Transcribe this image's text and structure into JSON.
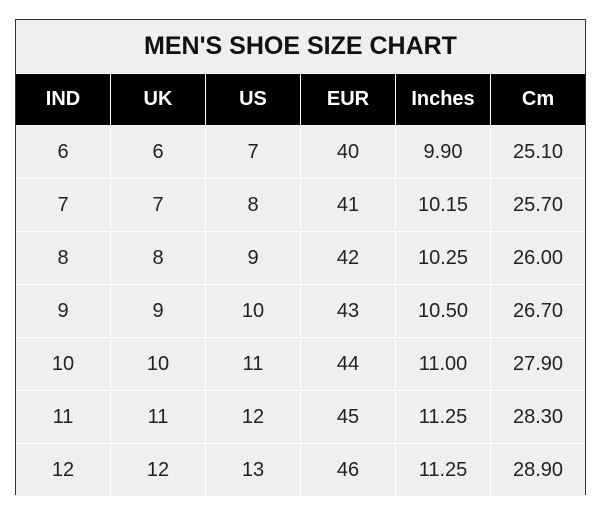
{
  "chart_data": {
    "type": "table",
    "title": "MEN'S SHOE SIZE CHART",
    "columns": [
      "IND",
      "UK",
      "US",
      "EUR",
      "Inches",
      "Cm"
    ],
    "rows": [
      [
        "6",
        "6",
        "7",
        "40",
        "9.90",
        "25.10"
      ],
      [
        "7",
        "7",
        "8",
        "41",
        "10.15",
        "25.70"
      ],
      [
        "8",
        "8",
        "9",
        "42",
        "10.25",
        "26.00"
      ],
      [
        "9",
        "9",
        "10",
        "43",
        "10.50",
        "26.70"
      ],
      [
        "10",
        "10",
        "11",
        "44",
        "11.00",
        "27.90"
      ],
      [
        "11",
        "11",
        "12",
        "45",
        "11.25",
        "28.30"
      ],
      [
        "12",
        "12",
        "13",
        "46",
        "11.25",
        "28.90"
      ]
    ]
  },
  "colors": {
    "header_bg": "#000000",
    "cell_bg": "#efefef",
    "header_text": "#ffffff"
  }
}
